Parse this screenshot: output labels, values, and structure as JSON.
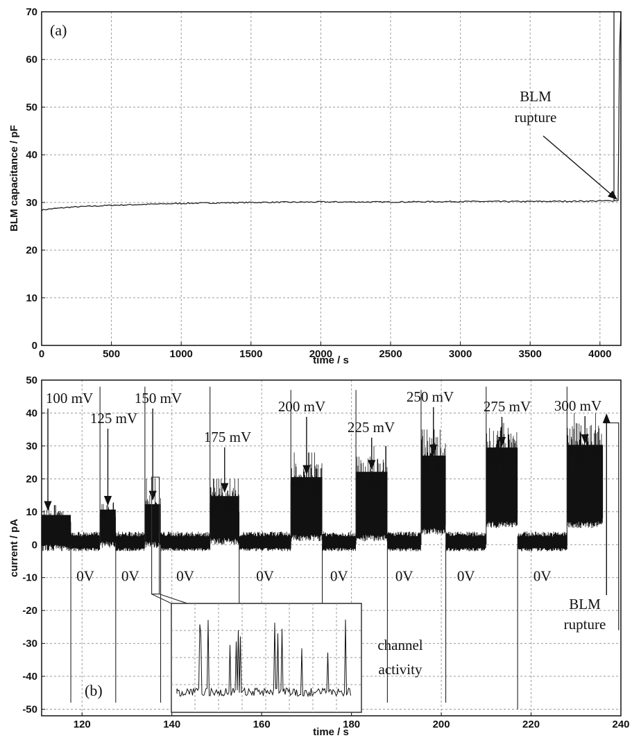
{
  "chart_data": [
    {
      "type": "line",
      "panel_label": "(a)",
      "xlabel": "time / s",
      "ylabel": "BLM capacitance / pF",
      "xlim": [
        0,
        4150
      ],
      "ylim": [
        0,
        70
      ],
      "xticks": [
        0,
        500,
        1000,
        1500,
        2000,
        2500,
        3000,
        3500,
        4000
      ],
      "yticks": [
        0,
        10,
        20,
        30,
        40,
        50,
        60,
        70
      ],
      "grid": true,
      "series": [
        {
          "x": [
            0,
            50,
            200,
            500,
            1000,
            1500,
            2000,
            2500,
            3000,
            3500,
            4000,
            4130,
            4140,
            4150
          ],
          "y": [
            28.4,
            28.6,
            29.0,
            29.4,
            29.8,
            30.0,
            30.1,
            30.1,
            30.2,
            30.2,
            30.3,
            30.4,
            62,
            70
          ]
        }
      ],
      "annotations": [
        {
          "text": [
            "BLM",
            "rupture"
          ],
          "arrow_to": [
            4120,
            30.4
          ]
        }
      ]
    },
    {
      "type": "line",
      "panel_label": "(b)",
      "xlabel": "time / s",
      "ylabel": "current / pA",
      "xlim": [
        111,
        240
      ],
      "ylim": [
        -52,
        50
      ],
      "xticks": [
        120,
        140,
        160,
        180,
        200,
        220,
        240
      ],
      "yticks": [
        -50,
        -40,
        -30,
        -20,
        -10,
        0,
        10,
        20,
        30,
        40,
        50
      ],
      "grid": true,
      "voltage_steps": [
        {
          "label": "100 mV",
          "start": 111,
          "end": 117.5,
          "low": -2,
          "high": 11,
          "peak": 12
        },
        {
          "label": "125 mV",
          "start": 124,
          "end": 127.5,
          "low": -1,
          "high": 13,
          "peak": 14
        },
        {
          "label": "150 mV",
          "start": 134,
          "end": 137.5,
          "low": -1,
          "high": 15,
          "peak": 20
        },
        {
          "label": "175 mV",
          "start": 148.5,
          "end": 155,
          "low": 0,
          "high": 18,
          "peak": 20
        },
        {
          "label": "200 mV",
          "start": 166.5,
          "end": 173.5,
          "low": 1,
          "high": 25,
          "peak": 28
        },
        {
          "label": "225 mV",
          "start": 181,
          "end": 188,
          "low": 1,
          "high": 27,
          "peak": 30
        },
        {
          "label": "250 mV",
          "start": 195.5,
          "end": 201,
          "low": 3,
          "high": 33,
          "peak": 35
        },
        {
          "label": "275 mV",
          "start": 210,
          "end": 217,
          "low": 5,
          "high": 36,
          "peak": 37
        },
        {
          "label": "300 mV",
          "start": 228,
          "end": 236,
          "low": 5,
          "high": 37,
          "peak": 40
        }
      ],
      "zero_segments": [
        {
          "label": "0V",
          "start": 117.5,
          "end": 124
        },
        {
          "label": "0V",
          "start": 127.5,
          "end": 134
        },
        {
          "label": "0V",
          "start": 137.5,
          "end": 148.5
        },
        {
          "label": "0V",
          "start": 155,
          "end": 166.5
        },
        {
          "label": "0V",
          "start": 173.5,
          "end": 181
        },
        {
          "label": "0V",
          "start": 188,
          "end": 195.5
        },
        {
          "label": "0V",
          "start": 201,
          "end": 210
        },
        {
          "label": "0V",
          "start": 217,
          "end": 228
        }
      ],
      "spikes": [
        {
          "x": 117.5,
          "y": -48
        },
        {
          "x": 124,
          "y": 48
        },
        {
          "x": 127.5,
          "y": -48
        },
        {
          "x": 134,
          "y": 48
        },
        {
          "x": 137.5,
          "y": -48
        },
        {
          "x": 148.5,
          "y": 48
        },
        {
          "x": 155,
          "y": -25
        },
        {
          "x": 166.5,
          "y": 47
        },
        {
          "x": 173.5,
          "y": -25
        },
        {
          "x": 181,
          "y": 47
        },
        {
          "x": 188,
          "y": -48
        },
        {
          "x": 195.5,
          "y": 47
        },
        {
          "x": 201,
          "y": -48
        },
        {
          "x": 210,
          "y": 48
        },
        {
          "x": 217,
          "y": -50
        },
        {
          "x": 228,
          "y": 48
        }
      ],
      "annotations": [
        {
          "text": [
            "BLM",
            "rupture"
          ],
          "arrow_to": [
            236.8,
            40
          ]
        },
        {
          "text": [
            "channel",
            "activity"
          ]
        }
      ]
    }
  ]
}
